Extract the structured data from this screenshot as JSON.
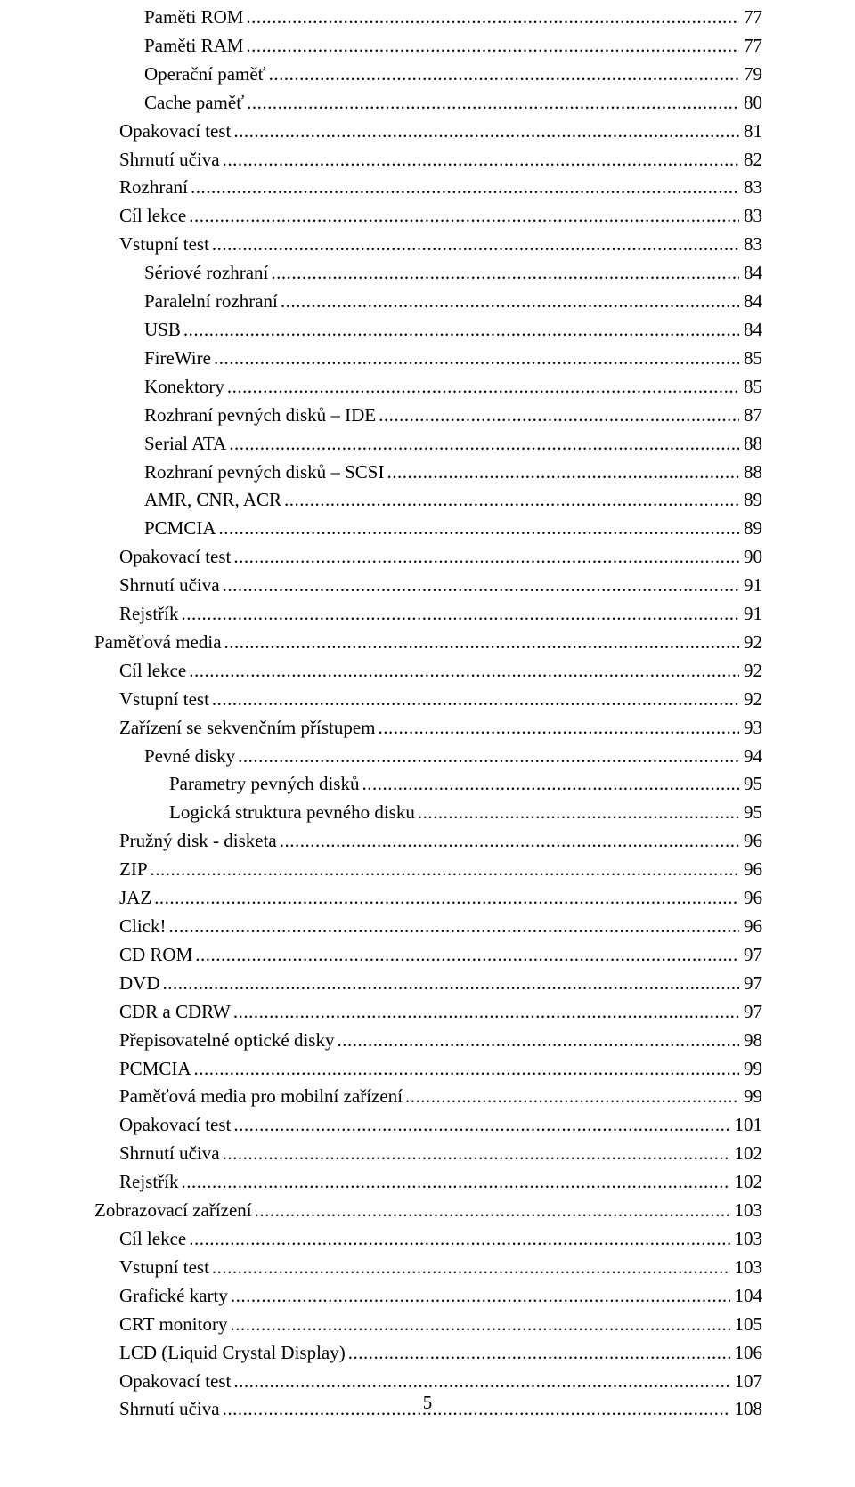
{
  "page_number": "5",
  "toc": [
    {
      "level": 2,
      "label": "Paměti ROM",
      "page": "77"
    },
    {
      "level": 2,
      "label": "Paměti RAM",
      "page": "77"
    },
    {
      "level": 2,
      "label": "Operační paměť",
      "page": "79"
    },
    {
      "level": 2,
      "label": "Cache paměť",
      "page": "80"
    },
    {
      "level": 1,
      "label": "Opakovací test",
      "page": "81"
    },
    {
      "level": 1,
      "label": "Shrnutí učiva",
      "page": "82"
    },
    {
      "level": 1,
      "label": "Rozhraní",
      "page": "83"
    },
    {
      "level": 1,
      "label": "Cíl lekce",
      "page": "83"
    },
    {
      "level": 1,
      "label": "Vstupní test",
      "page": "83"
    },
    {
      "level": 2,
      "label": "Sériové rozhraní",
      "page": "84"
    },
    {
      "level": 2,
      "label": "Paralelní rozhraní",
      "page": "84"
    },
    {
      "level": 2,
      "label": "USB",
      "page": "84"
    },
    {
      "level": 2,
      "label": "FireWire",
      "page": "85"
    },
    {
      "level": 2,
      "label": "Konektory",
      "page": "85"
    },
    {
      "level": 2,
      "label": "Rozhraní pevných disků – IDE",
      "page": "87"
    },
    {
      "level": 2,
      "label": "Serial ATA",
      "page": "88"
    },
    {
      "level": 2,
      "label": "Rozhraní pevných disků – SCSI",
      "page": "88"
    },
    {
      "level": 2,
      "label": "AMR, CNR, ACR",
      "page": "89"
    },
    {
      "level": 2,
      "label": "PCMCIA",
      "page": "89"
    },
    {
      "level": 1,
      "label": "Opakovací test",
      "page": "90"
    },
    {
      "level": 1,
      "label": "Shrnutí učiva",
      "page": "91"
    },
    {
      "level": 1,
      "label": "Rejstřík",
      "page": "91"
    },
    {
      "level": 0,
      "label": "Paměťová media",
      "page": "92"
    },
    {
      "level": 1,
      "label": "Cíl lekce",
      "page": "92"
    },
    {
      "level": 1,
      "label": "Vstupní test",
      "page": "92"
    },
    {
      "level": 1,
      "label": "Zařízení se sekvenčním přístupem",
      "page": "93"
    },
    {
      "level": 2,
      "label": "Pevné disky",
      "page": "94"
    },
    {
      "level": 3,
      "label": "Parametry pevných disků",
      "page": "95"
    },
    {
      "level": 3,
      "label": "Logická struktura pevného disku",
      "page": "95"
    },
    {
      "level": 1,
      "label": "Pružný disk -  disketa",
      "page": "96"
    },
    {
      "level": 1,
      "label": "ZIP",
      "page": "96"
    },
    {
      "level": 1,
      "label": "JAZ",
      "page": "96"
    },
    {
      "level": 1,
      "label": "Click!",
      "page": "96"
    },
    {
      "level": 1,
      "label": "CD ROM",
      "page": "97"
    },
    {
      "level": 1,
      "label": "DVD",
      "page": "97"
    },
    {
      "level": 1,
      "label": "CDR a CDRW",
      "page": "97"
    },
    {
      "level": 1,
      "label": "Přepisovatelné optické disky",
      "page": "98"
    },
    {
      "level": 1,
      "label": "PCMCIA",
      "page": "99"
    },
    {
      "level": 1,
      "label": "Paměťová media pro mobilní zařízení",
      "page": "99"
    },
    {
      "level": 1,
      "label": "Opakovací test",
      "page": "101"
    },
    {
      "level": 1,
      "label": "Shrnutí učiva",
      "page": "102"
    },
    {
      "level": 1,
      "label": "Rejstřík",
      "page": "102"
    },
    {
      "level": 0,
      "label": "Zobrazovací zařízení",
      "page": "103"
    },
    {
      "level": 1,
      "label": "Cíl lekce",
      "page": "103"
    },
    {
      "level": 1,
      "label": "Vstupní test",
      "page": "103"
    },
    {
      "level": 1,
      "label": "Grafické karty",
      "page": "104"
    },
    {
      "level": 1,
      "label": "CRT monitory",
      "page": "105"
    },
    {
      "level": 1,
      "label": "LCD (Liquid Crystal Display)",
      "page": "106"
    },
    {
      "level": 1,
      "label": "Opakovací test",
      "page": "107"
    },
    {
      "level": 1,
      "label": "Shrnutí učiva",
      "page": "108"
    }
  ]
}
